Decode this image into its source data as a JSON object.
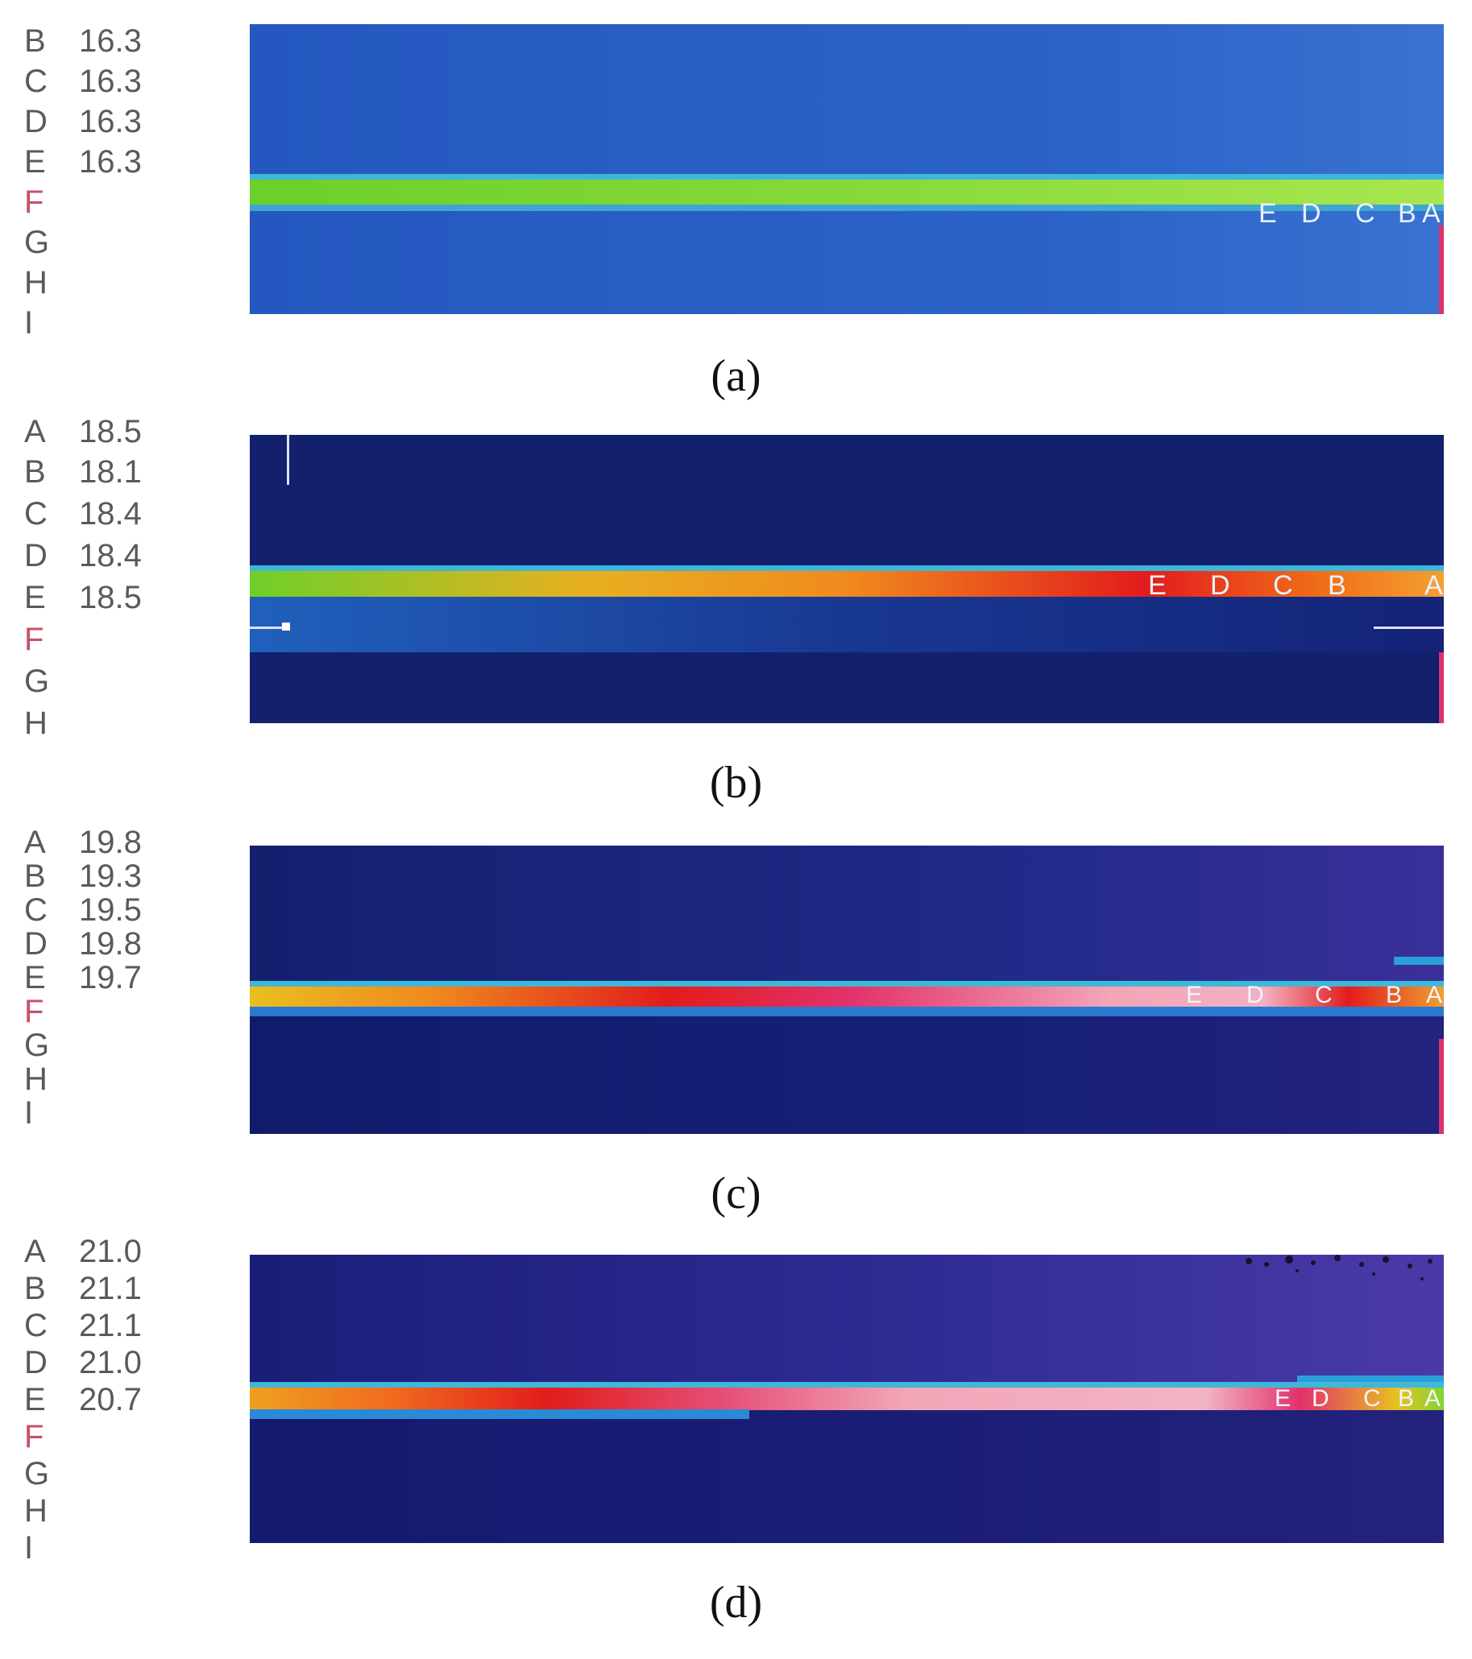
{
  "panels": [
    {
      "caption": "(a)",
      "rows": [
        {
          "letter": "B",
          "value": "16.3"
        },
        {
          "letter": "C",
          "value": "16.3"
        },
        {
          "letter": "D",
          "value": "16.3"
        },
        {
          "letter": "E",
          "value": "16.3"
        },
        {
          "letter": "F",
          "value": ""
        },
        {
          "letter": "G",
          "value": ""
        },
        {
          "letter": "H",
          "value": ""
        },
        {
          "letter": "I",
          "value": ""
        }
      ],
      "markers": [
        "E",
        "D",
        "C",
        "B",
        "A"
      ]
    },
    {
      "caption": "(b)",
      "rows": [
        {
          "letter": "A",
          "value": "18.5"
        },
        {
          "letter": "B",
          "value": "18.1"
        },
        {
          "letter": "C",
          "value": "18.4"
        },
        {
          "letter": "D",
          "value": "18.4"
        },
        {
          "letter": "E",
          "value": "18.5"
        },
        {
          "letter": "F",
          "value": ""
        },
        {
          "letter": "G",
          "value": ""
        },
        {
          "letter": "H",
          "value": ""
        }
      ],
      "markers": [
        "E",
        "D",
        "C",
        "B",
        "A"
      ]
    },
    {
      "caption": "(c)",
      "rows": [
        {
          "letter": "A",
          "value": "19.8"
        },
        {
          "letter": "B",
          "value": "19.3"
        },
        {
          "letter": "C",
          "value": "19.5"
        },
        {
          "letter": "D",
          "value": "19.8"
        },
        {
          "letter": "E",
          "value": "19.7"
        },
        {
          "letter": "F",
          "value": ""
        },
        {
          "letter": "G",
          "value": ""
        },
        {
          "letter": "H",
          "value": ""
        },
        {
          "letter": "I",
          "value": ""
        }
      ],
      "markers": [
        "E",
        "D",
        "C",
        "B",
        "A"
      ]
    },
    {
      "caption": "(d)",
      "rows": [
        {
          "letter": "A",
          "value": "21.0"
        },
        {
          "letter": "B",
          "value": "21.1"
        },
        {
          "letter": "C",
          "value": "21.1"
        },
        {
          "letter": "D",
          "value": "21.0"
        },
        {
          "letter": "E",
          "value": "20.7"
        },
        {
          "letter": "F",
          "value": ""
        },
        {
          "letter": "G",
          "value": ""
        },
        {
          "letter": "H",
          "value": ""
        },
        {
          "letter": "I",
          "value": ""
        }
      ],
      "markers": [
        "E",
        "D",
        "C",
        "B",
        "A"
      ]
    }
  ],
  "palette": {
    "background_a": "#2a5fc4",
    "background_bcd": "#14237a",
    "background_purple": "#3a2f9a",
    "stripe_green": "#7fd633",
    "stripe_orange": "#f08a1e",
    "stripe_red": "#e21c1c",
    "stripe_pink": "#f2a6b8",
    "label_highlight": "#c8506a"
  }
}
